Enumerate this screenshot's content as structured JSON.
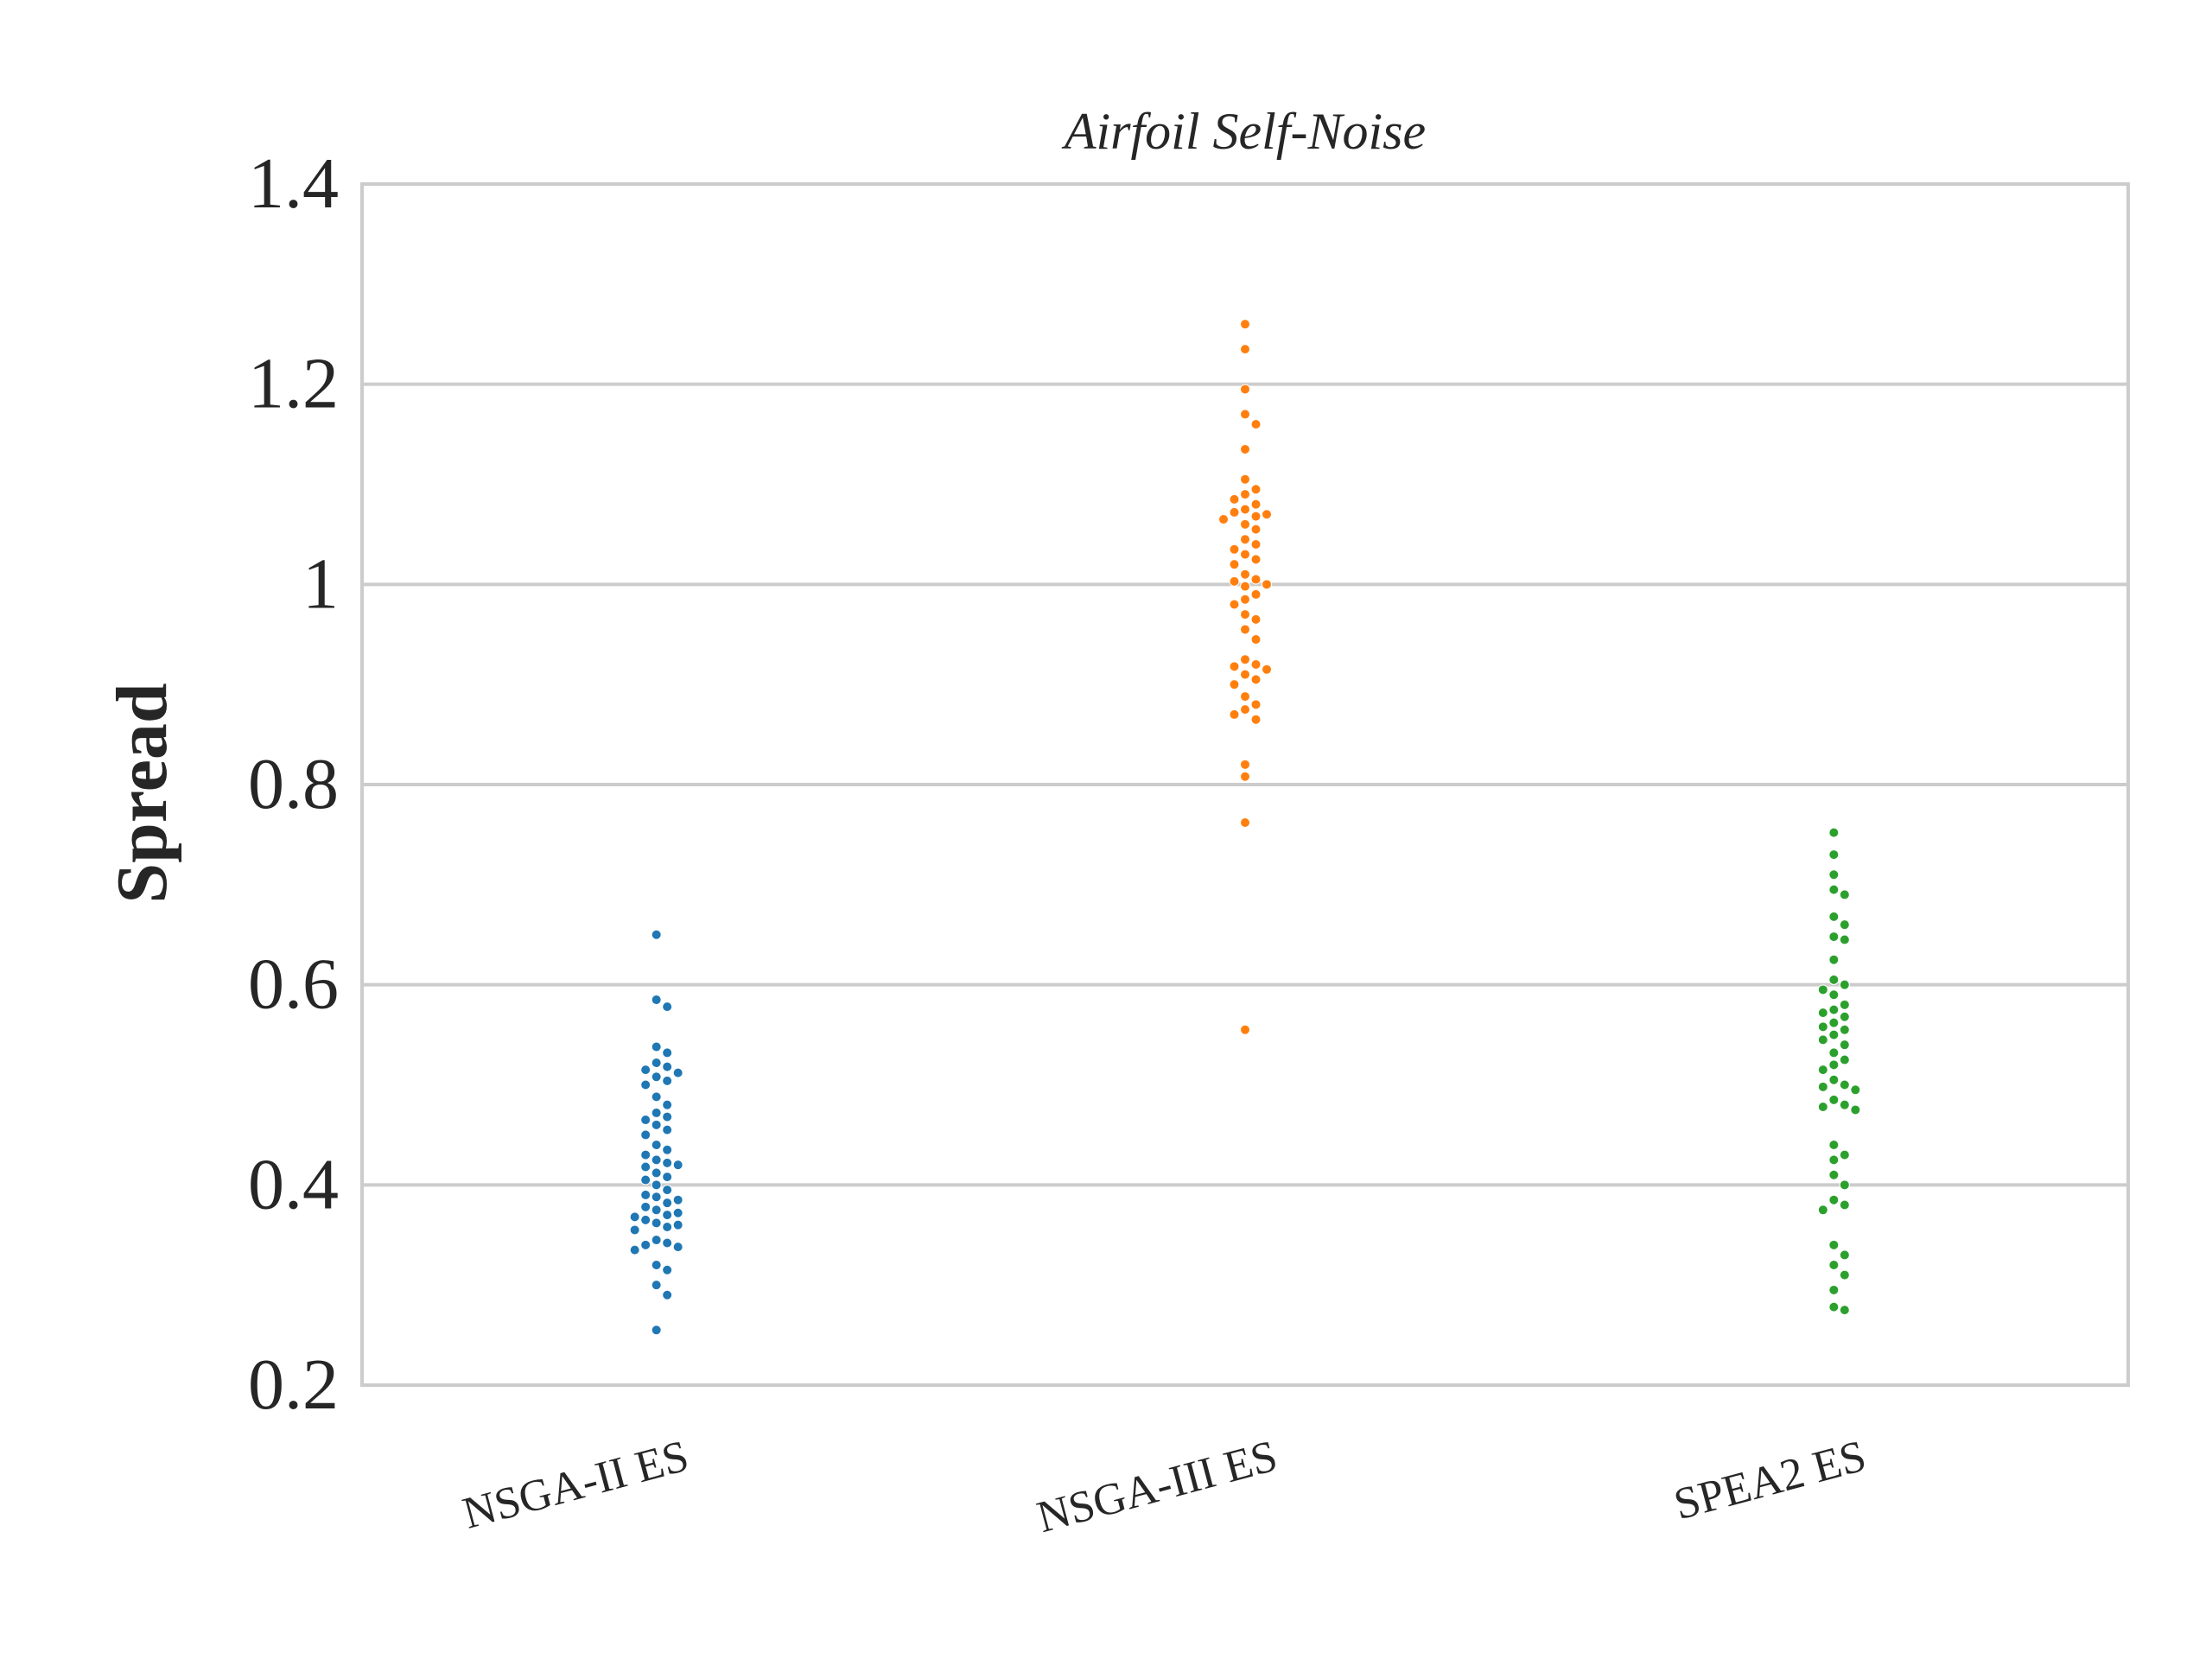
{
  "chart_data": {
    "type": "scatter",
    "title": "Airfoil Self-Noise",
    "xlabel": "",
    "ylabel": "Spread",
    "ylim": [
      0.2,
      1.4
    ],
    "yticks": [
      {
        "value": 0.2,
        "label": "0.2"
      },
      {
        "value": 0.4,
        "label": "0.4"
      },
      {
        "value": 0.6,
        "label": "0.6"
      },
      {
        "value": 0.8,
        "label": "0.8"
      },
      {
        "value": 1.0,
        "label": "1"
      },
      {
        "value": 1.2,
        "label": "1.2"
      },
      {
        "value": 1.4,
        "label": "1.4"
      }
    ],
    "grid": true,
    "categories": [
      "NSGA-II ES",
      "NSGA-III ES",
      "SPEA2 ES"
    ],
    "series": [
      {
        "color": "#1f77b4",
        "values": [
          0.65,
          0.585,
          0.578,
          0.538,
          0.532,
          0.522,
          0.518,
          0.515,
          0.512,
          0.508,
          0.504,
          0.5,
          0.488,
          0.48,
          0.472,
          0.468,
          0.465,
          0.46,
          0.455,
          0.45,
          0.44,
          0.435,
          0.43,
          0.425,
          0.422,
          0.42,
          0.418,
          0.412,
          0.408,
          0.405,
          0.4,
          0.395,
          0.39,
          0.388,
          0.385,
          0.382,
          0.378,
          0.375,
          0.372,
          0.37,
          0.368,
          0.365,
          0.362,
          0.36,
          0.358,
          0.355,
          0.345,
          0.342,
          0.34,
          0.338,
          0.335,
          0.32,
          0.315,
          0.3,
          0.29,
          0.255
        ]
      },
      {
        "color": "#ff7f0e",
        "values": [
          1.26,
          1.235,
          1.195,
          1.17,
          1.16,
          1.135,
          1.105,
          1.095,
          1.09,
          1.085,
          1.08,
          1.075,
          1.072,
          1.07,
          1.068,
          1.065,
          1.06,
          1.055,
          1.045,
          1.04,
          1.035,
          1.03,
          1.025,
          1.02,
          1.01,
          1.005,
          1.003,
          1.0,
          0.998,
          0.99,
          0.985,
          0.98,
          0.97,
          0.965,
          0.955,
          0.945,
          0.925,
          0.92,
          0.918,
          0.915,
          0.91,
          0.905,
          0.9,
          0.888,
          0.88,
          0.875,
          0.87,
          0.865,
          0.82,
          0.808,
          0.762,
          0.555
        ]
      },
      {
        "color": "#2ca02c",
        "values": [
          0.752,
          0.73,
          0.71,
          0.695,
          0.69,
          0.668,
          0.66,
          0.648,
          0.645,
          0.625,
          0.605,
          0.6,
          0.595,
          0.59,
          0.58,
          0.575,
          0.572,
          0.568,
          0.562,
          0.558,
          0.555,
          0.55,
          0.545,
          0.54,
          0.532,
          0.525,
          0.52,
          0.515,
          0.505,
          0.5,
          0.498,
          0.495,
          0.485,
          0.48,
          0.478,
          0.475,
          0.44,
          0.43,
          0.425,
          0.41,
          0.4,
          0.385,
          0.38,
          0.375,
          0.34,
          0.33,
          0.32,
          0.31,
          0.295,
          0.278,
          0.275
        ]
      }
    ]
  }
}
